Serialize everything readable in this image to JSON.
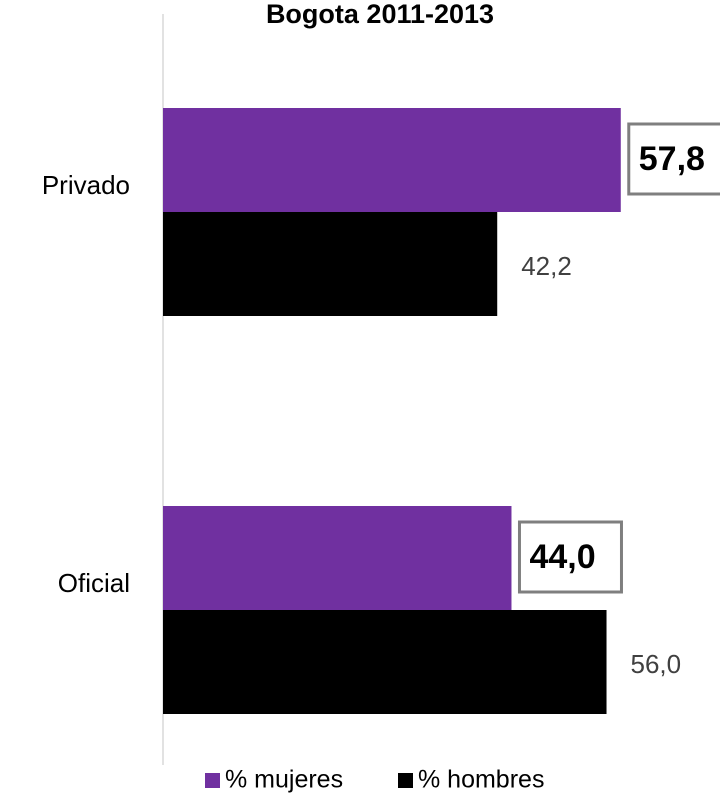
{
  "chart_data": {
    "type": "barh",
    "title": "Bogota 2011-2013",
    "categories": [
      "Privado",
      "Oficial"
    ],
    "series": [
      {
        "name": "% mujeres",
        "color": "#7030a0",
        "values": [
          57.8,
          44.0
        ],
        "value_labels": [
          "57,8",
          "44,0"
        ]
      },
      {
        "name": "% hombres",
        "color": "#000000",
        "values": [
          42.2,
          56.0
        ],
        "value_labels": [
          "42,2",
          "56,0"
        ]
      }
    ],
    "xlim": [
      0,
      70
    ]
  }
}
